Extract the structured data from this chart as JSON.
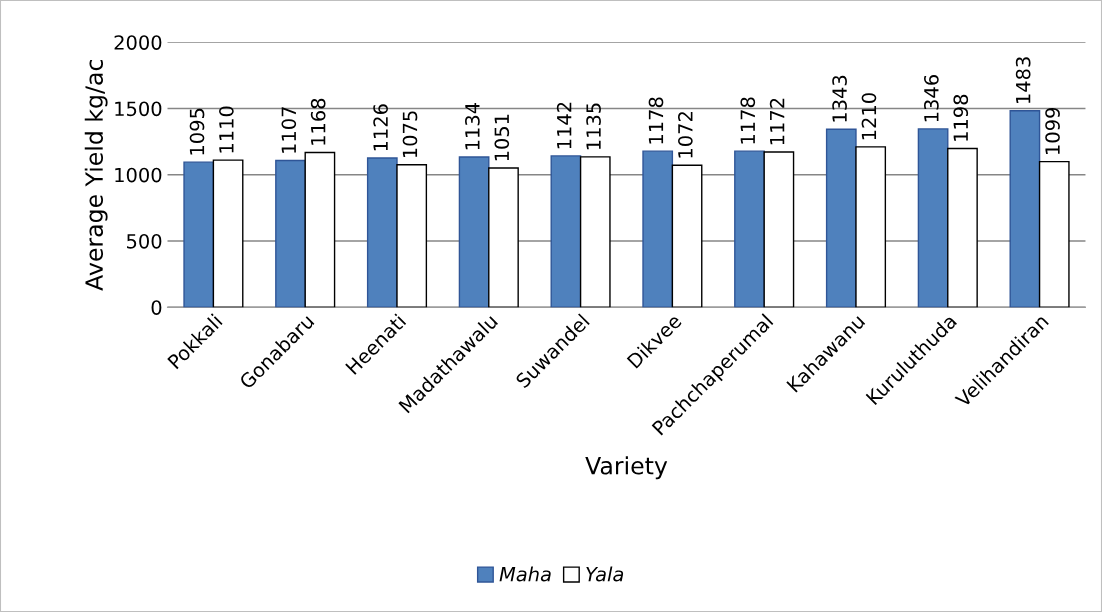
{
  "chart_data": {
    "type": "bar",
    "xlabel": "Variety",
    "ylabel": "Average Yield kg/ac",
    "categories": [
      "Pokkali",
      "Gonabaru",
      "Heenati",
      "Madathawalu",
      "Suwandel",
      "Dikvee",
      "Pachchaperumal",
      "Kahawanu",
      "Kuruluthuda",
      "Velihandiran"
    ],
    "series": [
      {
        "name": "Maha",
        "color": "#4f81bd",
        "values": [
          1095,
          1107,
          1126,
          1134,
          1142,
          1178,
          1178,
          1343,
          1346,
          1483
        ]
      },
      {
        "name": "Yala",
        "color": "#ffffff",
        "values": [
          1110,
          1168,
          1075,
          1051,
          1135,
          1072,
          1172,
          1210,
          1198,
          1099
        ]
      }
    ],
    "ylim": [
      0,
      2000
    ],
    "yticks": [
      0,
      500,
      1000,
      1500,
      2000
    ],
    "grid": "y",
    "legend": "bottom",
    "data_labels": true
  }
}
